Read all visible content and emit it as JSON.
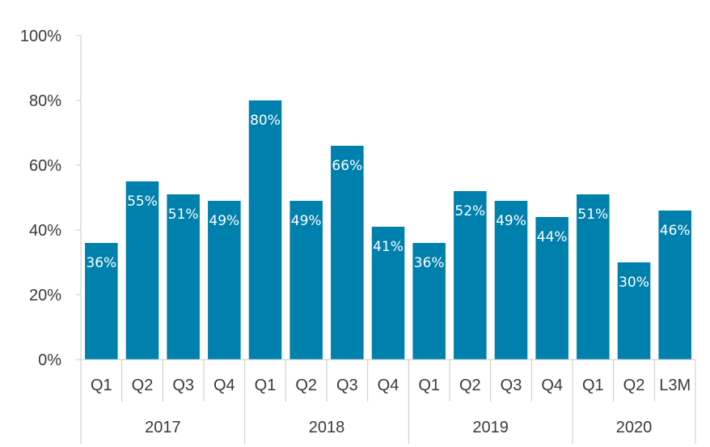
{
  "chart_data": {
    "type": "bar",
    "title": "",
    "xlabel": "",
    "ylabel": "",
    "ylim": [
      0,
      100
    ],
    "yticks": [
      "0%",
      "20%",
      "40%",
      "60%",
      "80%",
      "100%"
    ],
    "ytick_values": [
      0,
      20,
      40,
      60,
      80,
      100
    ],
    "grid": false,
    "bar_color": "#0080AC",
    "categories": [
      "Q1",
      "Q2",
      "Q3",
      "Q4",
      "Q1",
      "Q2",
      "Q3",
      "Q4",
      "Q1",
      "Q2",
      "Q3",
      "Q4",
      "Q1",
      "Q2",
      "L3M"
    ],
    "values": [
      36,
      55,
      51,
      49,
      80,
      49,
      66,
      41,
      36,
      52,
      49,
      44,
      51,
      30,
      46
    ],
    "data_labels": [
      "36%",
      "55%",
      "51%",
      "49%",
      "80%",
      "49%",
      "66%",
      "41%",
      "36%",
      "52%",
      "49%",
      "44%",
      "51%",
      "30%",
      "46%"
    ],
    "groups": [
      {
        "label": "2017",
        "count": 4
      },
      {
        "label": "2018",
        "count": 4
      },
      {
        "label": "2019",
        "count": 4
      },
      {
        "label": "2020",
        "count": 3
      }
    ]
  }
}
